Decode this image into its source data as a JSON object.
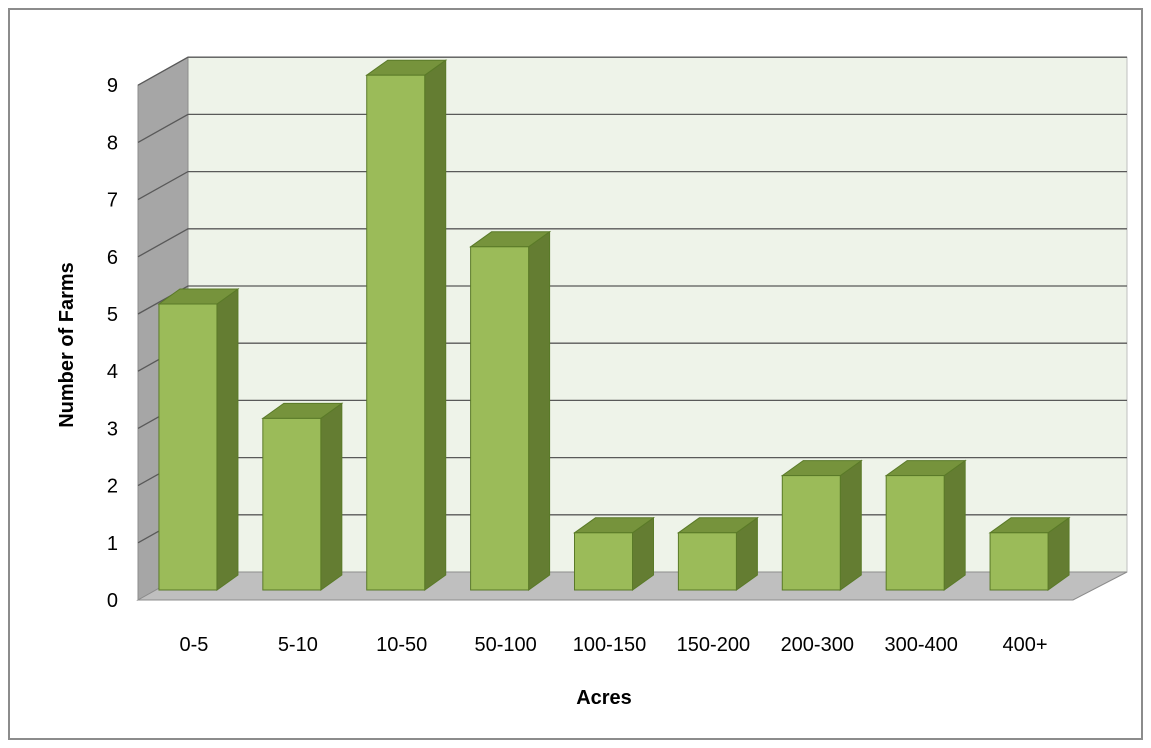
{
  "chart_data": {
    "type": "bar",
    "style": "3d-column",
    "title": "",
    "xlabel": "Acres",
    "ylabel": "Number of Farms",
    "categories": [
      "0-5",
      "5-10",
      "10-50",
      "50-100",
      "100-150",
      "150-200",
      "200-300",
      "300-400",
      "400+"
    ],
    "values": [
      5,
      3,
      9,
      6,
      1,
      1,
      2,
      2,
      1
    ],
    "ylim": [
      0,
      9
    ],
    "yticks": [
      "0",
      "1",
      "2",
      "3",
      "4",
      "5",
      "6",
      "7",
      "8",
      "9"
    ],
    "grid": true,
    "legend": "none",
    "colors": {
      "bar_front": "#9bbb59",
      "bar_top": "#76933c",
      "bar_side": "#647d32",
      "bar_edge": "#5a7a28",
      "back_wall": "#eef3e9",
      "side_wall": "#a6a6a6",
      "floor": "#bfbfbf",
      "gridline": "#595959"
    }
  }
}
